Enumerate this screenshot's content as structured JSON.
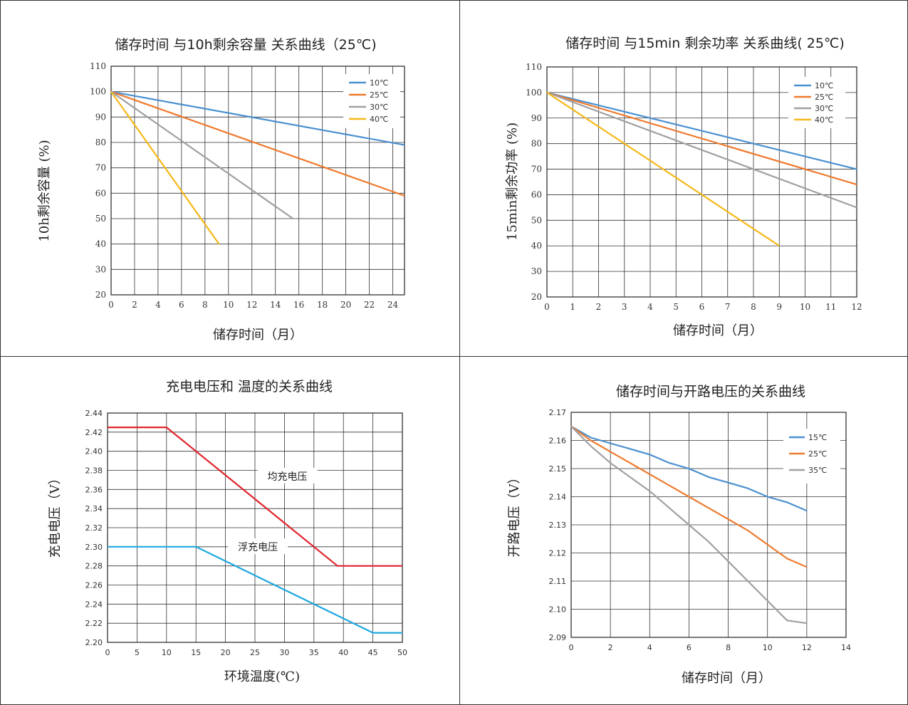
{
  "chart_data": [
    {
      "type": "line",
      "title": "储存时间 与10h剩余容量 关系曲线（25℃)",
      "xlabel": "储存时间（月）",
      "ylabel": "10h剩余容量 (%)",
      "xlim": [
        0,
        25
      ],
      "ylim": [
        20,
        110
      ],
      "xticks": [
        0,
        2,
        4,
        6,
        8,
        10,
        12,
        14,
        16,
        18,
        20,
        22,
        24
      ],
      "yticks": [
        20,
        30,
        40,
        50,
        60,
        70,
        80,
        90,
        100,
        110
      ],
      "grid": true,
      "legend": "top-right",
      "series": [
        {
          "name": "10℃",
          "color": "#4a90d0",
          "points": [
            [
              0,
              100
            ],
            [
              25,
              79
            ]
          ]
        },
        {
          "name": "25℃",
          "color": "#ee7a2e",
          "points": [
            [
              0,
              100
            ],
            [
              25,
              59
            ]
          ]
        },
        {
          "name": "30℃",
          "color": "#a0a0a0",
          "points": [
            [
              0,
              100
            ],
            [
              15.5,
              50
            ]
          ]
        },
        {
          "name": "40℃",
          "color": "#f6b81a",
          "points": [
            [
              0,
              100
            ],
            [
              9.2,
              40
            ]
          ]
        }
      ]
    },
    {
      "type": "line",
      "title": "储存时间 与15min 剩余功率 关系曲线( 25℃)",
      "xlabel": "储存时间（月）",
      "ylabel": "15min剩余功率 (%)",
      "xlim": [
        0,
        12
      ],
      "ylim": [
        20,
        110
      ],
      "xticks": [
        0,
        1,
        2,
        3,
        4,
        5,
        6,
        7,
        8,
        9,
        10,
        11,
        12
      ],
      "yticks": [
        20,
        30,
        40,
        50,
        60,
        70,
        80,
        90,
        100,
        110
      ],
      "grid": true,
      "legend": "top-right",
      "series": [
        {
          "name": "10℃",
          "color": "#4a90d0",
          "points": [
            [
              0,
              100
            ],
            [
              12,
              70
            ]
          ]
        },
        {
          "name": "25℃",
          "color": "#ee7a2e",
          "points": [
            [
              0,
              100
            ],
            [
              12,
              64
            ]
          ]
        },
        {
          "name": "30℃",
          "color": "#a0a0a0",
          "points": [
            [
              0,
              100
            ],
            [
              12,
              55
            ]
          ]
        },
        {
          "name": "40℃",
          "color": "#f6b81a",
          "points": [
            [
              0,
              100
            ],
            [
              9,
              40
            ]
          ]
        }
      ]
    },
    {
      "type": "line",
      "title": "充电电压和 温度的关系曲线",
      "xlabel": "环境温度(℃)",
      "ylabel": "充电电压（V）",
      "xlim": [
        0,
        50
      ],
      "ylim": [
        2.2,
        2.44
      ],
      "xticks": [
        0,
        5,
        10,
        15,
        20,
        25,
        30,
        35,
        40,
        45,
        50
      ],
      "yticks": [
        "2.20",
        "2.22",
        "2.24",
        "2.26",
        "2.28",
        "2.30",
        "2.32",
        "2.34",
        "2.36",
        "2.38",
        "2.40",
        "2.42",
        "2.44"
      ],
      "grid": true,
      "annotations": [
        {
          "text": "均充电压",
          "x": 30.5,
          "y": 2.373
        },
        {
          "text": "浮充电压",
          "x": 25.5,
          "y": 2.299
        }
      ],
      "series": [
        {
          "name": "均充电压",
          "color": "#e0242c",
          "points": [
            [
              0,
              2.425
            ],
            [
              10,
              2.425
            ],
            [
              39,
              2.28
            ],
            [
              50,
              2.28
            ]
          ]
        },
        {
          "name": "浮充电压",
          "color": "#20a8e0",
          "points": [
            [
              0,
              2.3
            ],
            [
              15,
              2.3
            ],
            [
              45,
              2.21
            ],
            [
              50,
              2.21
            ]
          ]
        }
      ]
    },
    {
      "type": "line",
      "title": "储存时间与开路电压的关系曲线",
      "xlabel": "储存时间（月）",
      "ylabel": "开路电压（V）",
      "xlim": [
        0,
        14
      ],
      "ylim": [
        2.09,
        2.17
      ],
      "xticks": [
        0,
        2,
        4,
        6,
        8,
        10,
        12,
        14
      ],
      "yticks": [
        "2.09",
        "2.10",
        "2.11",
        "2.12",
        "2.13",
        "2.14",
        "2.15",
        "2.16",
        "2.17"
      ],
      "grid": true,
      "legend": "top-right",
      "series": [
        {
          "name": "15℃",
          "color": "#4a90d0",
          "points": [
            [
              0,
              2.165
            ],
            [
              1,
              2.161
            ],
            [
              2,
              2.159
            ],
            [
              3,
              2.157
            ],
            [
              4,
              2.155
            ],
            [
              5,
              2.152
            ],
            [
              6,
              2.15
            ],
            [
              7,
              2.147
            ],
            [
              8,
              2.145
            ],
            [
              9,
              2.143
            ],
            [
              10,
              2.14
            ],
            [
              11,
              2.138
            ],
            [
              12,
              2.135
            ]
          ]
        },
        {
          "name": "25℃",
          "color": "#ee7a2e",
          "points": [
            [
              0,
              2.165
            ],
            [
              1,
              2.16
            ],
            [
              2,
              2.156
            ],
            [
              3,
              2.152
            ],
            [
              4,
              2.148
            ],
            [
              5,
              2.144
            ],
            [
              6,
              2.14
            ],
            [
              7,
              2.136
            ],
            [
              8,
              2.132
            ],
            [
              9,
              2.128
            ],
            [
              10,
              2.123
            ],
            [
              11,
              2.118
            ],
            [
              12,
              2.115
            ]
          ]
        },
        {
          "name": "35℃",
          "color": "#a0a0a0",
          "points": [
            [
              0,
              2.165
            ],
            [
              1,
              2.158
            ],
            [
              2,
              2.152
            ],
            [
              3,
              2.147
            ],
            [
              4,
              2.142
            ],
            [
              5,
              2.136
            ],
            [
              6,
              2.13
            ],
            [
              7,
              2.124
            ],
            [
              8,
              2.117
            ],
            [
              9,
              2.11
            ],
            [
              10,
              2.103
            ],
            [
              11,
              2.096
            ],
            [
              12,
              2.095
            ]
          ]
        }
      ]
    }
  ]
}
